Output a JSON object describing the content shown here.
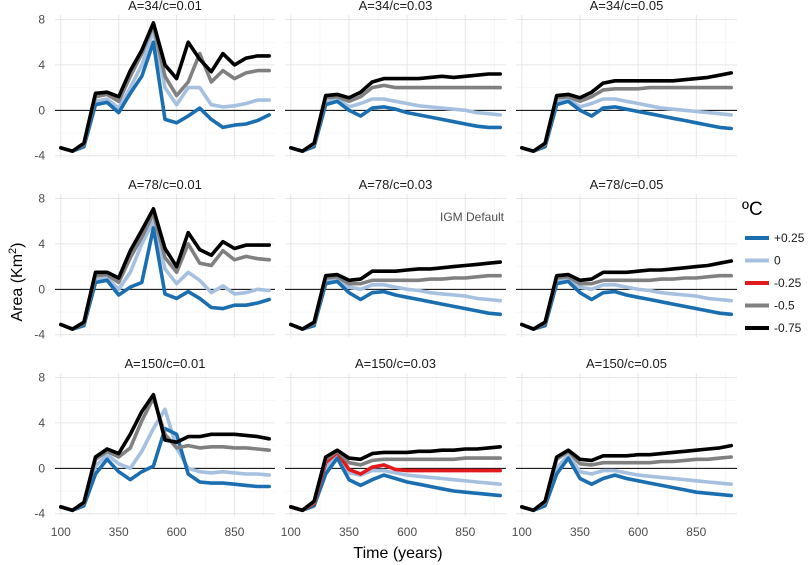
{
  "chart_data": {
    "type": "line",
    "xlabel": "Time (years)",
    "ylabel_text": "Area (Km",
    "ylabel_sup": "2",
    "ylabel_close": ")",
    "xlim": [
      75,
      1025
    ],
    "ylim": [
      -4.2,
      8.4
    ],
    "x_ticks": [
      100,
      350,
      600,
      850
    ],
    "y_ticks": [
      -4,
      0,
      4,
      8
    ],
    "grid": true,
    "legend": {
      "title": "ºC",
      "position": "right",
      "entries": [
        {
          "label": "+0.25",
          "color": "#1b6fb0"
        },
        {
          "label": "0",
          "color": "#a6c0e0"
        },
        {
          "label": "-0.25",
          "color": "#e31a1c"
        },
        {
          "label": "-0.5",
          "color": "#808080"
        },
        {
          "label": "-0.75",
          "color": "#000000"
        }
      ]
    },
    "annotation": {
      "text": "IGM Default",
      "panel": 4
    },
    "x": [
      100,
      150,
      200,
      250,
      300,
      350,
      400,
      450,
      500,
      550,
      600,
      650,
      700,
      750,
      800,
      850,
      900,
      950,
      1000
    ],
    "panels": [
      {
        "title": "A=34/c=0.01",
        "series": [
          {
            "name": "+0.25",
            "values": [
              -3.3,
              -3.6,
              -3.2,
              0.5,
              0.7,
              -0.2,
              1.5,
              3.0,
              6.0,
              -0.8,
              -1.1,
              -0.5,
              0.2,
              -0.8,
              -1.5,
              -1.3,
              -1.2,
              -0.9,
              -0.4
            ]
          },
          {
            "name": "0",
            "values": [
              -3.3,
              -3.6,
              -3.2,
              0.8,
              1.0,
              0.2,
              2.0,
              4.0,
              7.0,
              2.0,
              0.5,
              2.0,
              2.0,
              0.5,
              0.3,
              0.4,
              0.6,
              0.9,
              0.9
            ]
          },
          {
            "name": "-0.5",
            "values": [
              -3.3,
              -3.6,
              -3.0,
              1.2,
              1.4,
              0.8,
              3.0,
              5.0,
              7.5,
              3.0,
              1.3,
              2.5,
              5.0,
              2.5,
              3.5,
              2.8,
              3.3,
              3.5,
              3.5
            ]
          },
          {
            "name": "-0.75",
            "values": [
              -3.3,
              -3.6,
              -2.9,
              1.5,
              1.6,
              1.2,
              3.5,
              5.3,
              7.7,
              4.0,
              2.8,
              6.0,
              4.5,
              3.4,
              5.0,
              4.0,
              4.6,
              4.8,
              4.8
            ]
          }
        ]
      },
      {
        "title": "A=34/c=0.03",
        "series": [
          {
            "name": "+0.25",
            "values": [
              -3.3,
              -3.6,
              -3.2,
              0.5,
              0.8,
              0.0,
              -0.5,
              0.2,
              0.3,
              0.1,
              -0.2,
              -0.4,
              -0.6,
              -0.8,
              -1.0,
              -1.2,
              -1.4,
              -1.5,
              -1.5
            ]
          },
          {
            "name": "0",
            "values": [
              -3.3,
              -3.6,
              -3.1,
              0.7,
              1.0,
              0.3,
              0.6,
              1.0,
              1.0,
              0.8,
              0.6,
              0.4,
              0.3,
              0.2,
              0.1,
              0.0,
              -0.2,
              -0.3,
              -0.4
            ]
          },
          {
            "name": "-0.5",
            "values": [
              -3.3,
              -3.6,
              -3.0,
              1.1,
              1.2,
              0.8,
              1.2,
              2.0,
              2.2,
              2.0,
              2.0,
              2.0,
              2.0,
              2.0,
              2.0,
              2.0,
              2.0,
              2.0,
              2.0
            ]
          },
          {
            "name": "-0.75",
            "values": [
              -3.3,
              -3.6,
              -2.9,
              1.3,
              1.4,
              1.1,
              1.6,
              2.5,
              2.8,
              2.8,
              2.8,
              2.8,
              2.9,
              3.0,
              2.9,
              3.0,
              3.1,
              3.2,
              3.2
            ]
          }
        ]
      },
      {
        "title": "A=34/c=0.05",
        "series": [
          {
            "name": "+0.25",
            "values": [
              -3.3,
              -3.6,
              -3.2,
              0.5,
              0.8,
              0.0,
              -0.5,
              0.2,
              0.3,
              0.1,
              -0.1,
              -0.3,
              -0.5,
              -0.7,
              -0.9,
              -1.1,
              -1.3,
              -1.5,
              -1.6
            ]
          },
          {
            "name": "0",
            "values": [
              -3.3,
              -3.6,
              -3.1,
              0.7,
              1.0,
              0.3,
              0.6,
              1.0,
              1.0,
              0.8,
              0.6,
              0.4,
              0.2,
              0.1,
              0.0,
              -0.1,
              -0.2,
              -0.3,
              -0.4
            ]
          },
          {
            "name": "-0.5",
            "values": [
              -3.3,
              -3.6,
              -3.0,
              1.1,
              1.2,
              0.8,
              1.2,
              1.8,
              1.9,
              1.9,
              1.9,
              2.0,
              2.0,
              2.0,
              2.0,
              2.0,
              2.0,
              2.0,
              2.0
            ]
          },
          {
            "name": "-0.75",
            "values": [
              -3.3,
              -3.6,
              -2.9,
              1.3,
              1.4,
              1.1,
              1.6,
              2.4,
              2.6,
              2.6,
              2.6,
              2.6,
              2.6,
              2.6,
              2.7,
              2.8,
              2.9,
              3.1,
              3.3
            ]
          }
        ]
      },
      {
        "title": "A=78/c=0.01",
        "series": [
          {
            "name": "+0.25",
            "values": [
              -3.1,
              -3.5,
              -3.2,
              0.6,
              0.8,
              -0.5,
              0.2,
              0.6,
              5.4,
              -0.4,
              -0.8,
              -0.2,
              -0.8,
              -1.6,
              -1.7,
              -1.4,
              -1.4,
              -1.2,
              -0.9
            ]
          },
          {
            "name": "0",
            "values": [
              -3.1,
              -3.5,
              -3.1,
              0.9,
              1.0,
              0.0,
              1.5,
              4.0,
              6.0,
              1.8,
              0.5,
              1.5,
              0.8,
              -0.3,
              0.3,
              -0.4,
              -0.3,
              0.0,
              -0.1
            ]
          },
          {
            "name": "-0.5",
            "values": [
              -3.1,
              -3.5,
              -3.0,
              1.2,
              1.3,
              0.6,
              2.8,
              4.6,
              6.7,
              2.8,
              1.5,
              4.0,
              2.3,
              2.1,
              3.4,
              2.6,
              2.9,
              2.7,
              2.6
            ]
          },
          {
            "name": "-0.75",
            "values": [
              -3.1,
              -3.5,
              -2.9,
              1.5,
              1.5,
              1.0,
              3.4,
              5.2,
              7.1,
              3.6,
              2.0,
              5.0,
              3.5,
              3.0,
              4.2,
              3.6,
              3.9,
              3.9,
              3.9
            ]
          }
        ]
      },
      {
        "title": "A=78/c=0.03",
        "series": [
          {
            "name": "+0.25",
            "values": [
              -3.1,
              -3.5,
              -3.2,
              0.5,
              0.7,
              -0.3,
              -0.9,
              -0.3,
              -0.2,
              -0.5,
              -0.7,
              -0.9,
              -1.1,
              -1.3,
              -1.5,
              -1.7,
              -1.9,
              -2.1,
              -2.2
            ]
          },
          {
            "name": "0",
            "values": [
              -3.1,
              -3.5,
              -3.1,
              0.7,
              0.9,
              0.2,
              0.0,
              0.4,
              0.4,
              0.2,
              0.0,
              -0.1,
              -0.3,
              -0.4,
              -0.5,
              -0.6,
              -0.8,
              -0.9,
              -1.0
            ]
          },
          {
            "name": "-0.5",
            "values": [
              -3.1,
              -3.5,
              -3.0,
              1.0,
              1.1,
              0.5,
              0.5,
              0.8,
              0.8,
              0.8,
              0.8,
              0.8,
              0.9,
              0.9,
              1.0,
              1.0,
              1.1,
              1.2,
              1.2
            ]
          },
          {
            "name": "-0.75",
            "values": [
              -3.1,
              -3.5,
              -2.9,
              1.2,
              1.3,
              0.8,
              0.9,
              1.6,
              1.6,
              1.6,
              1.7,
              1.8,
              1.8,
              1.9,
              2.0,
              2.1,
              2.2,
              2.3,
              2.4
            ]
          }
        ]
      },
      {
        "title": "A=78/c=0.05",
        "series": [
          {
            "name": "+0.25",
            "values": [
              -3.1,
              -3.5,
              -3.2,
              0.5,
              0.7,
              -0.3,
              -0.9,
              -0.3,
              -0.2,
              -0.5,
              -0.7,
              -0.9,
              -1.1,
              -1.3,
              -1.5,
              -1.7,
              -1.9,
              -2.1,
              -2.2
            ]
          },
          {
            "name": "0",
            "values": [
              -3.1,
              -3.5,
              -3.1,
              0.7,
              0.9,
              0.2,
              0.0,
              0.4,
              0.4,
              0.2,
              0.0,
              -0.1,
              -0.3,
              -0.4,
              -0.5,
              -0.6,
              -0.8,
              -0.9,
              -1.0
            ]
          },
          {
            "name": "-0.5",
            "values": [
              -3.1,
              -3.5,
              -3.0,
              1.0,
              1.1,
              0.5,
              0.5,
              0.8,
              0.8,
              0.8,
              0.8,
              0.8,
              0.9,
              0.9,
              1.0,
              1.0,
              1.1,
              1.2,
              1.2
            ]
          },
          {
            "name": "-0.75",
            "values": [
              -3.1,
              -3.5,
              -2.9,
              1.2,
              1.3,
              0.8,
              0.9,
              1.5,
              1.5,
              1.5,
              1.6,
              1.7,
              1.7,
              1.8,
              1.9,
              2.0,
              2.1,
              2.3,
              2.5
            ]
          }
        ]
      },
      {
        "title": "A=150/c=0.01",
        "series": [
          {
            "name": "+0.25",
            "values": [
              -3.4,
              -3.7,
              -3.3,
              -0.5,
              0.8,
              -0.3,
              -1.0,
              -0.3,
              0.2,
              3.5,
              3.0,
              -0.5,
              -1.2,
              -1.3,
              -1.3,
              -1.4,
              -1.5,
              -1.6,
              -1.6
            ]
          },
          {
            "name": "0",
            "values": [
              -3.4,
              -3.7,
              -3.2,
              0.2,
              1.2,
              0.4,
              0.0,
              1.5,
              3.5,
              5.2,
              1.8,
              0.0,
              -0.3,
              -0.4,
              -0.3,
              -0.4,
              -0.5,
              -0.5,
              -0.6
            ]
          },
          {
            "name": "-0.5",
            "values": [
              -3.4,
              -3.7,
              -3.1,
              0.8,
              1.5,
              1.0,
              1.8,
              4.2,
              6.2,
              3.0,
              1.8,
              2.0,
              1.8,
              1.9,
              1.9,
              1.8,
              1.8,
              1.7,
              1.6
            ]
          },
          {
            "name": "-0.75",
            "values": [
              -3.4,
              -3.7,
              -3.0,
              1.0,
              1.7,
              1.3,
              3.0,
              5.0,
              6.5,
              2.5,
              2.3,
              2.8,
              2.8,
              3.0,
              3.0,
              3.0,
              2.9,
              2.8,
              2.6
            ]
          }
        ]
      },
      {
        "title": "A=150/c=0.03",
        "series": [
          {
            "name": "+0.25",
            "values": [
              -3.4,
              -3.7,
              -3.3,
              -0.5,
              0.9,
              -1.0,
              -1.5,
              -1.0,
              -0.6,
              -0.9,
              -1.2,
              -1.4,
              -1.6,
              -1.8,
              -2.0,
              -2.1,
              -2.2,
              -2.3,
              -2.4
            ]
          },
          {
            "name": "0",
            "values": [
              -3.4,
              -3.7,
              -3.2,
              0.0,
              1.2,
              -0.4,
              -0.6,
              -0.2,
              -0.2,
              -0.4,
              -0.6,
              -0.7,
              -0.8,
              -0.9,
              -1.0,
              -1.1,
              -1.2,
              -1.3,
              -1.4
            ]
          },
          {
            "name": "-0.25",
            "values": [
              -3.4,
              -3.7,
              -3.1,
              0.5,
              1.4,
              -0.1,
              -0.5,
              0.1,
              0.3,
              -0.1,
              -0.2,
              -0.2,
              -0.2,
              -0.2,
              -0.2,
              -0.2,
              -0.2,
              -0.2,
              -0.2
            ]
          },
          {
            "name": "-0.5",
            "values": [
              -3.4,
              -3.7,
              -3.0,
              0.8,
              1.5,
              0.5,
              0.3,
              0.7,
              0.8,
              0.8,
              0.8,
              0.8,
              0.8,
              0.8,
              0.8,
              0.9,
              0.9,
              0.9,
              0.9
            ]
          },
          {
            "name": "-0.75",
            "values": [
              -3.4,
              -3.7,
              -2.9,
              1.0,
              1.6,
              0.9,
              0.8,
              1.3,
              1.4,
              1.4,
              1.4,
              1.5,
              1.5,
              1.6,
              1.6,
              1.7,
              1.7,
              1.8,
              1.9
            ]
          }
        ]
      },
      {
        "title": "A=150/c=0.05",
        "series": [
          {
            "name": "+0.25",
            "values": [
              -3.4,
              -3.7,
              -3.3,
              -0.5,
              0.9,
              -0.9,
              -1.4,
              -0.9,
              -0.6,
              -0.9,
              -1.1,
              -1.3,
              -1.5,
              -1.7,
              -1.9,
              -2.1,
              -2.2,
              -2.3,
              -2.4
            ]
          },
          {
            "name": "0",
            "values": [
              -3.4,
              -3.7,
              -3.2,
              0.0,
              1.2,
              -0.3,
              -0.5,
              -0.2,
              -0.2,
              -0.4,
              -0.6,
              -0.7,
              -0.8,
              -0.9,
              -1.0,
              -1.1,
              -1.2,
              -1.3,
              -1.4
            ]
          },
          {
            "name": "-0.5",
            "values": [
              -3.4,
              -3.7,
              -3.0,
              0.8,
              1.5,
              0.4,
              0.3,
              0.5,
              0.5,
              0.5,
              0.5,
              0.5,
              0.6,
              0.6,
              0.7,
              0.8,
              0.8,
              0.9,
              1.0
            ]
          },
          {
            "name": "-0.75",
            "values": [
              -3.4,
              -3.7,
              -2.9,
              1.0,
              1.6,
              0.8,
              0.7,
              1.1,
              1.1,
              1.1,
              1.2,
              1.2,
              1.3,
              1.4,
              1.5,
              1.6,
              1.7,
              1.8,
              2.0
            ]
          }
        ]
      }
    ]
  }
}
